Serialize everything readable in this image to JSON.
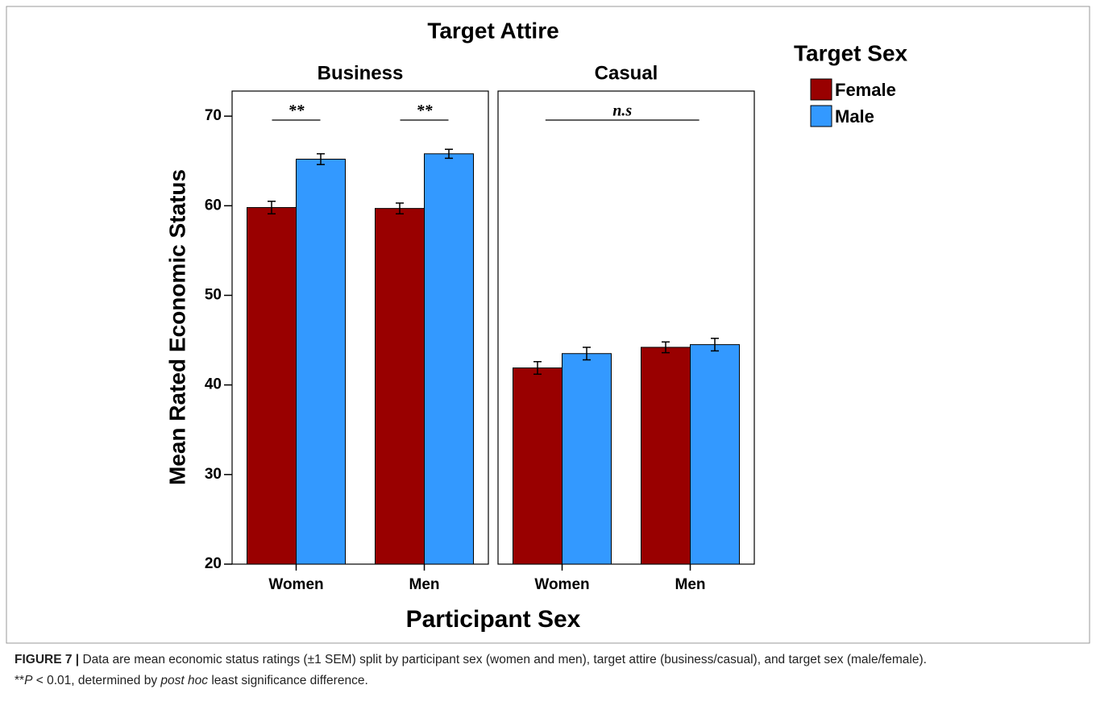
{
  "figure": {
    "title": "Target Attire",
    "x_label": "Participant Sex",
    "y_label": "Mean Rated Economic Status",
    "legend_title": "Target Sex"
  },
  "chart_data": [
    {
      "type": "bar",
      "title": "Business",
      "categories": [
        "Women",
        "Men"
      ],
      "series": [
        {
          "name": "Female",
          "color": "#990000",
          "values": [
            59.8,
            59.7
          ],
          "errors": [
            0.7,
            0.6
          ]
        },
        {
          "name": "Male",
          "color": "#3399ff",
          "values": [
            65.2,
            65.8
          ],
          "errors": [
            0.6,
            0.5
          ]
        }
      ],
      "ylim": [
        20,
        72.8
      ],
      "yticks": [
        20,
        30,
        40,
        50,
        60,
        70
      ],
      "annotations": [
        "**",
        "**"
      ]
    },
    {
      "type": "bar",
      "title": "Casual",
      "categories": [
        "Women",
        "Men"
      ],
      "series": [
        {
          "name": "Female",
          "color": "#990000",
          "values": [
            41.9,
            44.2
          ],
          "errors": [
            0.7,
            0.6
          ]
        },
        {
          "name": "Male",
          "color": "#3399ff",
          "values": [
            43.5,
            44.5
          ],
          "errors": [
            0.7,
            0.7
          ]
        }
      ],
      "ylim": [
        20,
        72.8
      ],
      "annotations": [
        "n.s"
      ]
    }
  ],
  "caption": [
    "FIGURE 7 |",
    " Data are mean economic status ratings (±1 SEM) split by participant sex (women and men), target attire (business/casual), and target sex (male/female).",
    "**",
    "P",
    " < 0.01, determined by ",
    "post hoc",
    " least significance difference."
  ]
}
